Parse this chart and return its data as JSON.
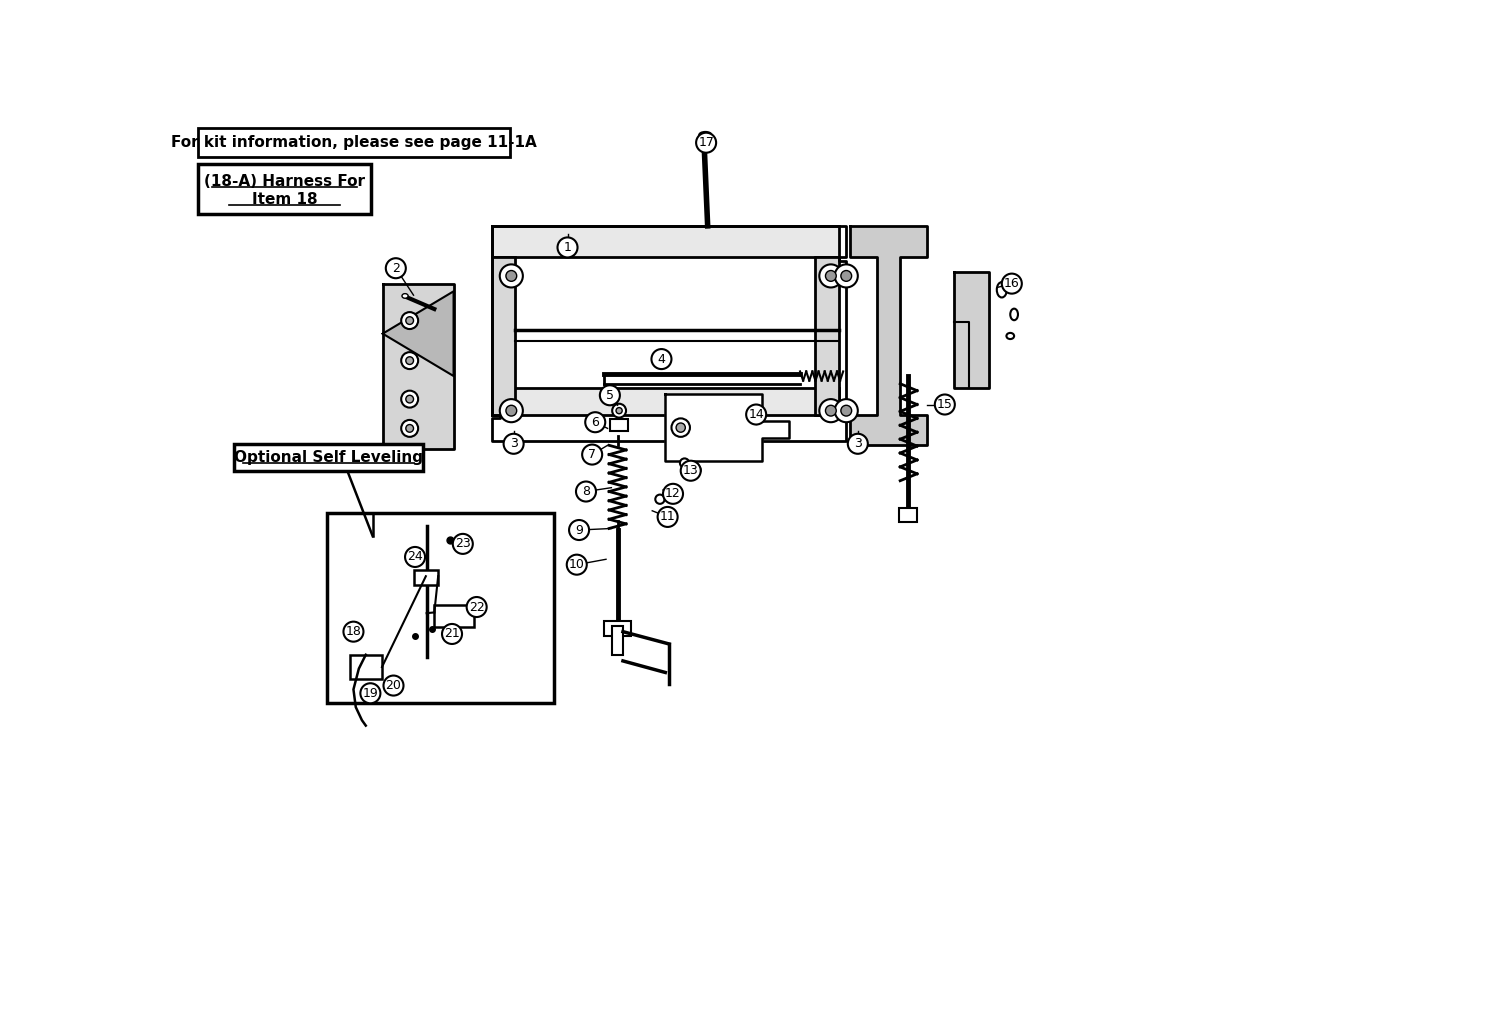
{
  "bg_color": "#ffffff",
  "title_box_text": "For kit information, please see page 11-1A",
  "harness_box_text1": "(18-A) Harness For",
  "harness_box_text2": "Item 18",
  "optional_label": "Optional Self Leveling",
  "fig_width": 15.04,
  "fig_height": 10.16,
  "main_color": "#000000"
}
